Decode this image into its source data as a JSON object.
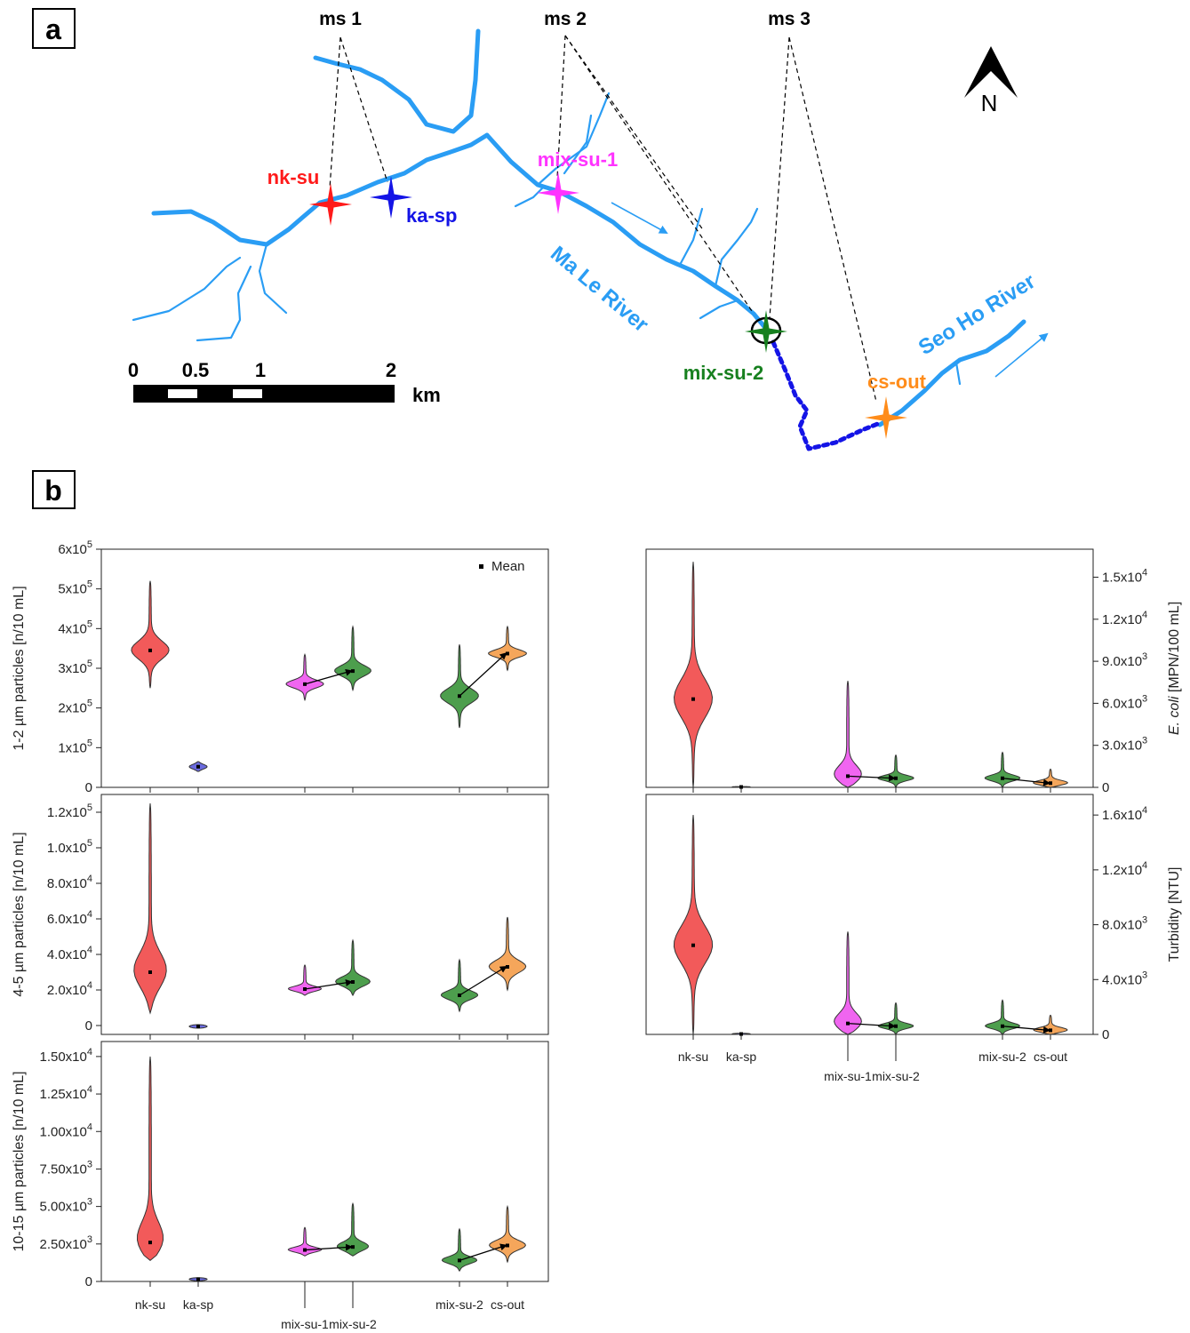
{
  "panel_a": {
    "letter": "a",
    "monitoring_stations": [
      "ms 1",
      "ms 2",
      "ms 3"
    ],
    "sites": [
      {
        "label": "nk-su",
        "color": "#ff1a1a"
      },
      {
        "label": "ka-sp",
        "color": "#1414e6"
      },
      {
        "label": "mix-su-1",
        "color": "#ff33ff"
      },
      {
        "label": "mix-su-2",
        "color": "#17801f"
      },
      {
        "label": "cs-out",
        "color": "#ff8c1a"
      }
    ],
    "rivers": [
      "Ma Le River",
      "Seo Ho River"
    ],
    "north": "N",
    "scale": {
      "ticks": [
        "0",
        "0.5",
        "1",
        "2"
      ],
      "unit": "km"
    },
    "river_color": "#2a9df4"
  },
  "panel_b": {
    "letter": "b"
  },
  "legend": {
    "mean": "Mean"
  },
  "colors": {
    "nk-su": "#f25a5a",
    "ka-sp": "#6b6bdf",
    "mix-su-1": "#f065f0",
    "mix-su-2": "#4d9e4d",
    "cs-out": "#f5a65b"
  },
  "categories": [
    "nk-su",
    "ka-sp",
    "mix-su-1",
    "mix-su-2",
    "mix-su-2",
    "cs-out"
  ],
  "chart_data": [
    {
      "id": "p12",
      "type": "violin",
      "ylabel": "1-2 µm particles [n/10 mL]",
      "ylim": [
        0,
        600000
      ],
      "yticks": [
        {
          "t": "0",
          "v": 0
        },
        {
          "t": "1x10",
          "e": "5",
          "v": 100000
        },
        {
          "t": "2x10",
          "e": "5",
          "v": 200000
        },
        {
          "t": "3x10",
          "e": "5",
          "v": 300000
        },
        {
          "t": "4x10",
          "e": "5",
          "v": 400000
        },
        {
          "t": "5x10",
          "e": "5",
          "v": 500000
        },
        {
          "t": "6x10",
          "e": "5",
          "v": 600000
        }
      ],
      "legend": "top-right",
      "series": [
        {
          "name": "nk-su",
          "mean": 345000,
          "min": 250000,
          "max": 520000
        },
        {
          "name": "ka-sp",
          "mean": 52000,
          "min": 40000,
          "max": 65000
        },
        {
          "name": "mix-su-1",
          "mean": 260000,
          "min": 220000,
          "max": 335000
        },
        {
          "name": "mix-su-2",
          "mean": 293000,
          "min": 245000,
          "max": 405000
        },
        {
          "name": "mix-su-2",
          "mean": 230000,
          "min": 150000,
          "max": 360000
        },
        {
          "name": "cs-out",
          "mean": 337000,
          "min": 295000,
          "max": 405000
        }
      ]
    },
    {
      "id": "p45",
      "type": "violin",
      "ylabel": "4-5 µm particles [n/10 mL]",
      "ylim": [
        -5000,
        130000
      ],
      "yticks": [
        {
          "t": "0",
          "v": 0
        },
        {
          "t": "2.0x10",
          "e": "4",
          "v": 20000
        },
        {
          "t": "4.0x10",
          "e": "4",
          "v": 40000
        },
        {
          "t": "6.0x10",
          "e": "4",
          "v": 60000
        },
        {
          "t": "8.0x10",
          "e": "4",
          "v": 80000
        },
        {
          "t": "1.0x10",
          "e": "5",
          "v": 100000
        },
        {
          "t": "1.2x10",
          "e": "5",
          "v": 120000
        }
      ],
      "series": [
        {
          "name": "nk-su",
          "mean": 30000,
          "min": 7000,
          "max": 125000
        },
        {
          "name": "ka-sp",
          "mean": -500,
          "min": -1500,
          "max": 500
        },
        {
          "name": "mix-su-1",
          "mean": 20500,
          "min": 17000,
          "max": 34000
        },
        {
          "name": "mix-su-2",
          "mean": 24500,
          "min": 17000,
          "max": 48000
        },
        {
          "name": "mix-su-2",
          "mean": 17000,
          "min": 8000,
          "max": 37000
        },
        {
          "name": "cs-out",
          "mean": 33000,
          "min": 20000,
          "max": 61000
        }
      ]
    },
    {
      "id": "p1015",
      "type": "violin",
      "ylabel": "10-15 µm particles [n/10 mL]",
      "ylim": [
        0,
        16000
      ],
      "yticks": [
        {
          "t": "0",
          "v": 0
        },
        {
          "t": "2.50x10",
          "e": "3",
          "v": 2500
        },
        {
          "t": "5.00x10",
          "e": "3",
          "v": 5000
        },
        {
          "t": "7.50x10",
          "e": "3",
          "v": 7500
        },
        {
          "t": "1.00x10",
          "e": "4",
          "v": 10000
        },
        {
          "t": "1.25x10",
          "e": "4",
          "v": 12500
        },
        {
          "t": "1.50x10",
          "e": "4",
          "v": 15000
        }
      ],
      "series": [
        {
          "name": "nk-su",
          "mean": 2600,
          "min": 1400,
          "max": 15000
        },
        {
          "name": "ka-sp",
          "mean": 150,
          "min": 50,
          "max": 250
        },
        {
          "name": "mix-su-1",
          "mean": 2100,
          "min": 1700,
          "max": 3600
        },
        {
          "name": "mix-su-2",
          "mean": 2300,
          "min": 1700,
          "max": 5200
        },
        {
          "name": "mix-su-2",
          "mean": 1400,
          "min": 700,
          "max": 3500
        },
        {
          "name": "cs-out",
          "mean": 2400,
          "min": 1300,
          "max": 5000
        }
      ]
    },
    {
      "id": "ecoli",
      "type": "violin",
      "ylabel_pre": "E. coli",
      "ylabel_post": " [MPN/100 mL]",
      "ylim": [
        0,
        17000
      ],
      "yticks": [
        {
          "t": "0",
          "v": 0
        },
        {
          "t": "3.0x10",
          "e": "3",
          "v": 3000
        },
        {
          "t": "6.0x10",
          "e": "3",
          "v": 6000
        },
        {
          "t": "9.0x10",
          "e": "3",
          "v": 9000
        },
        {
          "t": "1.2x10",
          "e": "4",
          "v": 12000
        },
        {
          "t": "1.5x10",
          "e": "4",
          "v": 15000
        }
      ],
      "series": [
        {
          "name": "nk-su",
          "mean": 6300,
          "min": 0,
          "max": 16100
        },
        {
          "name": "ka-sp",
          "mean": 30,
          "min": 0,
          "max": 60
        },
        {
          "name": "mix-su-1",
          "mean": 800,
          "min": 0,
          "max": 7600
        },
        {
          "name": "mix-su-2",
          "mean": 650,
          "min": 0,
          "max": 2300
        },
        {
          "name": "mix-su-2",
          "mean": 650,
          "min": 0,
          "max": 2500
        },
        {
          "name": "cs-out",
          "mean": 300,
          "min": 0,
          "max": 1300
        }
      ]
    },
    {
      "id": "turb",
      "type": "violin",
      "ylabel": "Turbidity [NTU]",
      "ylim": [
        0,
        17500
      ],
      "yticks": [
        {
          "t": "0",
          "v": 0
        },
        {
          "t": "4.0x10",
          "e": "3",
          "v": 4000
        },
        {
          "t": "8.0x10",
          "e": "3",
          "v": 8000
        },
        {
          "t": "1.2x10",
          "e": "4",
          "v": 12000
        },
        {
          "t": "1.6x10",
          "e": "4",
          "v": 16000
        }
      ],
      "series": [
        {
          "name": "nk-su",
          "mean": 6500,
          "min": 0,
          "max": 16000
        },
        {
          "name": "ka-sp",
          "mean": 30,
          "min": 0,
          "max": 80
        },
        {
          "name": "mix-su-1",
          "mean": 800,
          "min": 0,
          "max": 7500
        },
        {
          "name": "mix-su-2",
          "mean": 600,
          "min": 0,
          "max": 2300
        },
        {
          "name": "mix-su-2",
          "mean": 600,
          "min": 0,
          "max": 2500
        },
        {
          "name": "cs-out",
          "mean": 300,
          "min": 0,
          "max": 1400
        }
      ]
    }
  ]
}
